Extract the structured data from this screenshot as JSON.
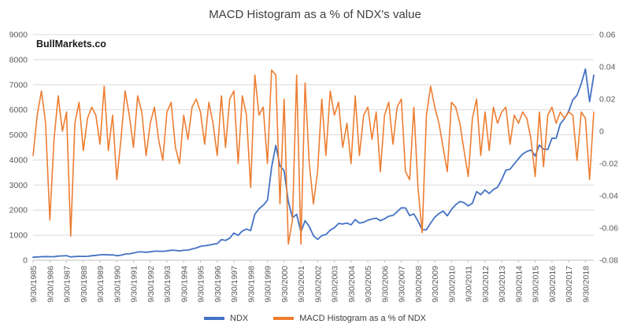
{
  "watermark": "BullMarkets.co",
  "colors": {
    "ndx_blue": "#4472c4",
    "macd_orange": "#ed7d31",
    "grid": "#d9d9d9",
    "axis_line": "#bfbfbf",
    "axis_text": "#595959",
    "title_text": "#3f3f3f"
  },
  "chart_data": {
    "type": "line",
    "title": "MACD Histogram as a % of NDX's value",
    "frequency": "quarterly estimates read from chart",
    "grid": true,
    "legend_position": "bottom",
    "x_label_rotation": 270,
    "x_tick_labels": [
      "9/30/1985",
      "9/30/1986",
      "9/30/1987",
      "9/30/1988",
      "9/30/1989",
      "9/30/1990",
      "9/30/1991",
      "9/30/1992",
      "9/30/1993",
      "9/30/1994",
      "9/30/1995",
      "9/30/1996",
      "9/30/1997",
      "9/30/1998",
      "9/30/1999",
      "9/30/2000",
      "9/30/2001",
      "9/30/2002",
      "9/30/2003",
      "9/30/2004",
      "9/30/2005",
      "9/30/2006",
      "9/30/2007",
      "9/30/2008",
      "9/30/2009",
      "9/30/2010",
      "9/30/2011",
      "9/30/2012",
      "9/30/2013",
      "9/30/2014",
      "9/30/2015",
      "9/30/2016",
      "9/30/2017",
      "9/30/2018"
    ],
    "x_tick_indices": [
      0,
      4,
      8,
      12,
      16,
      20,
      24,
      28,
      32,
      36,
      40,
      44,
      48,
      52,
      56,
      60,
      64,
      68,
      72,
      76,
      80,
      84,
      88,
      92,
      96,
      100,
      104,
      108,
      112,
      116,
      120,
      124,
      128,
      132
    ],
    "left_axis": {
      "min": 0,
      "max": 9000,
      "step": 1000,
      "tick_values": [
        0,
        1000,
        2000,
        3000,
        4000,
        5000,
        6000,
        7000,
        8000,
        9000
      ],
      "tick_labels": [
        "0",
        "1000",
        "2000",
        "3000",
        "4000",
        "5000",
        "6000",
        "7000",
        "8000",
        "9000"
      ]
    },
    "right_axis": {
      "min": -0.08,
      "max": 0.06,
      "step": 0.02,
      "tick_values": [
        -0.08,
        -0.06,
        -0.04,
        -0.02,
        0,
        0.02,
        0.04,
        0.06
      ],
      "tick_labels": [
        "-0.08",
        "-0.06",
        "-0.04",
        "-0.02",
        "0",
        "0.02",
        "0.04",
        "0.06"
      ]
    },
    "series": [
      {
        "name": "NDX",
        "axis": "left",
        "color": "#4472c4",
        "values": [
          120,
          133,
          141,
          148,
          141,
          141,
          166,
          173,
          183,
          133,
          148,
          158,
          152,
          156,
          178,
          194,
          216,
          223,
          212,
          217,
          178,
          200,
          248,
          254,
          284,
          330,
          332,
          320,
          337,
          361,
          360,
          353,
          372,
          398,
          395,
          369,
          398,
          404,
          447,
          490,
          552,
          576,
          602,
          636,
          662,
          821,
          790,
          881,
          1086,
          990,
          1166,
          1243,
          1181,
          1836,
          2053,
          2190,
          2394,
          3708,
          4583,
          3764,
          3570,
          2341,
          1698,
          1830,
          1127,
          1577,
          1349,
          977,
          832,
          984,
          1021,
          1201,
          1297,
          1468,
          1447,
          1483,
          1413,
          1621,
          1483,
          1514,
          1595,
          1645,
          1678,
          1577,
          1654,
          1757,
          1789,
          1935,
          2092,
          2085,
          1780,
          1848,
          1565,
          1212,
          1217,
          1477,
          1717,
          1860,
          1960,
          1771,
          2026,
          2218,
          2338,
          2297,
          2166,
          2278,
          2738,
          2615,
          2799,
          2661,
          2819,
          2910,
          3218,
          3592,
          3631,
          3840,
          4049,
          4236,
          4341,
          4397,
          4157,
          4593,
          4430,
          4418,
          4870,
          4863,
          5437,
          5647,
          5939,
          6396,
          6581,
          7041,
          7627,
          6329,
          7378
        ]
      },
      {
        "name": "MACD Histogram as a % of NDX",
        "axis": "right",
        "color": "#ed7d31",
        "values": [
          -0.015,
          0.01,
          0.025,
          0.005,
          -0.055,
          -0.005,
          0.022,
          0,
          0.012,
          -0.065,
          0.005,
          0.018,
          -0.012,
          0.008,
          0.015,
          0.01,
          -0.008,
          0.028,
          -0.012,
          0.01,
          -0.03,
          -0.005,
          0.025,
          0.01,
          -0.01,
          0.022,
          0.012,
          -0.015,
          0.005,
          0.015,
          -0.005,
          -0.018,
          0.012,
          0.018,
          -0.01,
          -0.02,
          0.01,
          -0.005,
          0.015,
          0.02,
          0.012,
          -0.008,
          0.018,
          0.005,
          -0.015,
          0.022,
          -0.01,
          0.02,
          0.025,
          -0.02,
          0.022,
          0.01,
          -0.035,
          0.035,
          0.01,
          0.015,
          -0.02,
          0.038,
          0.035,
          -0.045,
          0.02,
          -0.07,
          -0.055,
          0.035,
          -0.07,
          0.03,
          -0.02,
          -0.045,
          -0.025,
          0.02,
          -0.015,
          0.025,
          0.01,
          0.018,
          -0.01,
          0.005,
          -0.02,
          0.022,
          -0.015,
          0.01,
          0.015,
          -0.005,
          0.012,
          -0.025,
          0.01,
          0.018,
          -0.008,
          0.015,
          0.02,
          -0.025,
          -0.03,
          0.015,
          -0.035,
          -0.063,
          0.01,
          0.028,
          0.015,
          0.005,
          -0.01,
          -0.025,
          0.018,
          0.015,
          0.005,
          -0.012,
          -0.028,
          0.008,
          0.02,
          -0.015,
          0.012,
          -0.012,
          0.015,
          0.005,
          0.012,
          0.015,
          -0.008,
          0.01,
          0.005,
          0.012,
          0.008,
          -0.005,
          -0.028,
          0.012,
          -0.022,
          0.01,
          0.015,
          0.005,
          0.012,
          0.008,
          0.012,
          0.01,
          -0.018,
          0.012,
          0.008,
          -0.03,
          0.012
        ]
      }
    ]
  },
  "legend": {
    "ndx_label": "NDX",
    "macd_label": "MACD Histogram as a % of NDX"
  }
}
